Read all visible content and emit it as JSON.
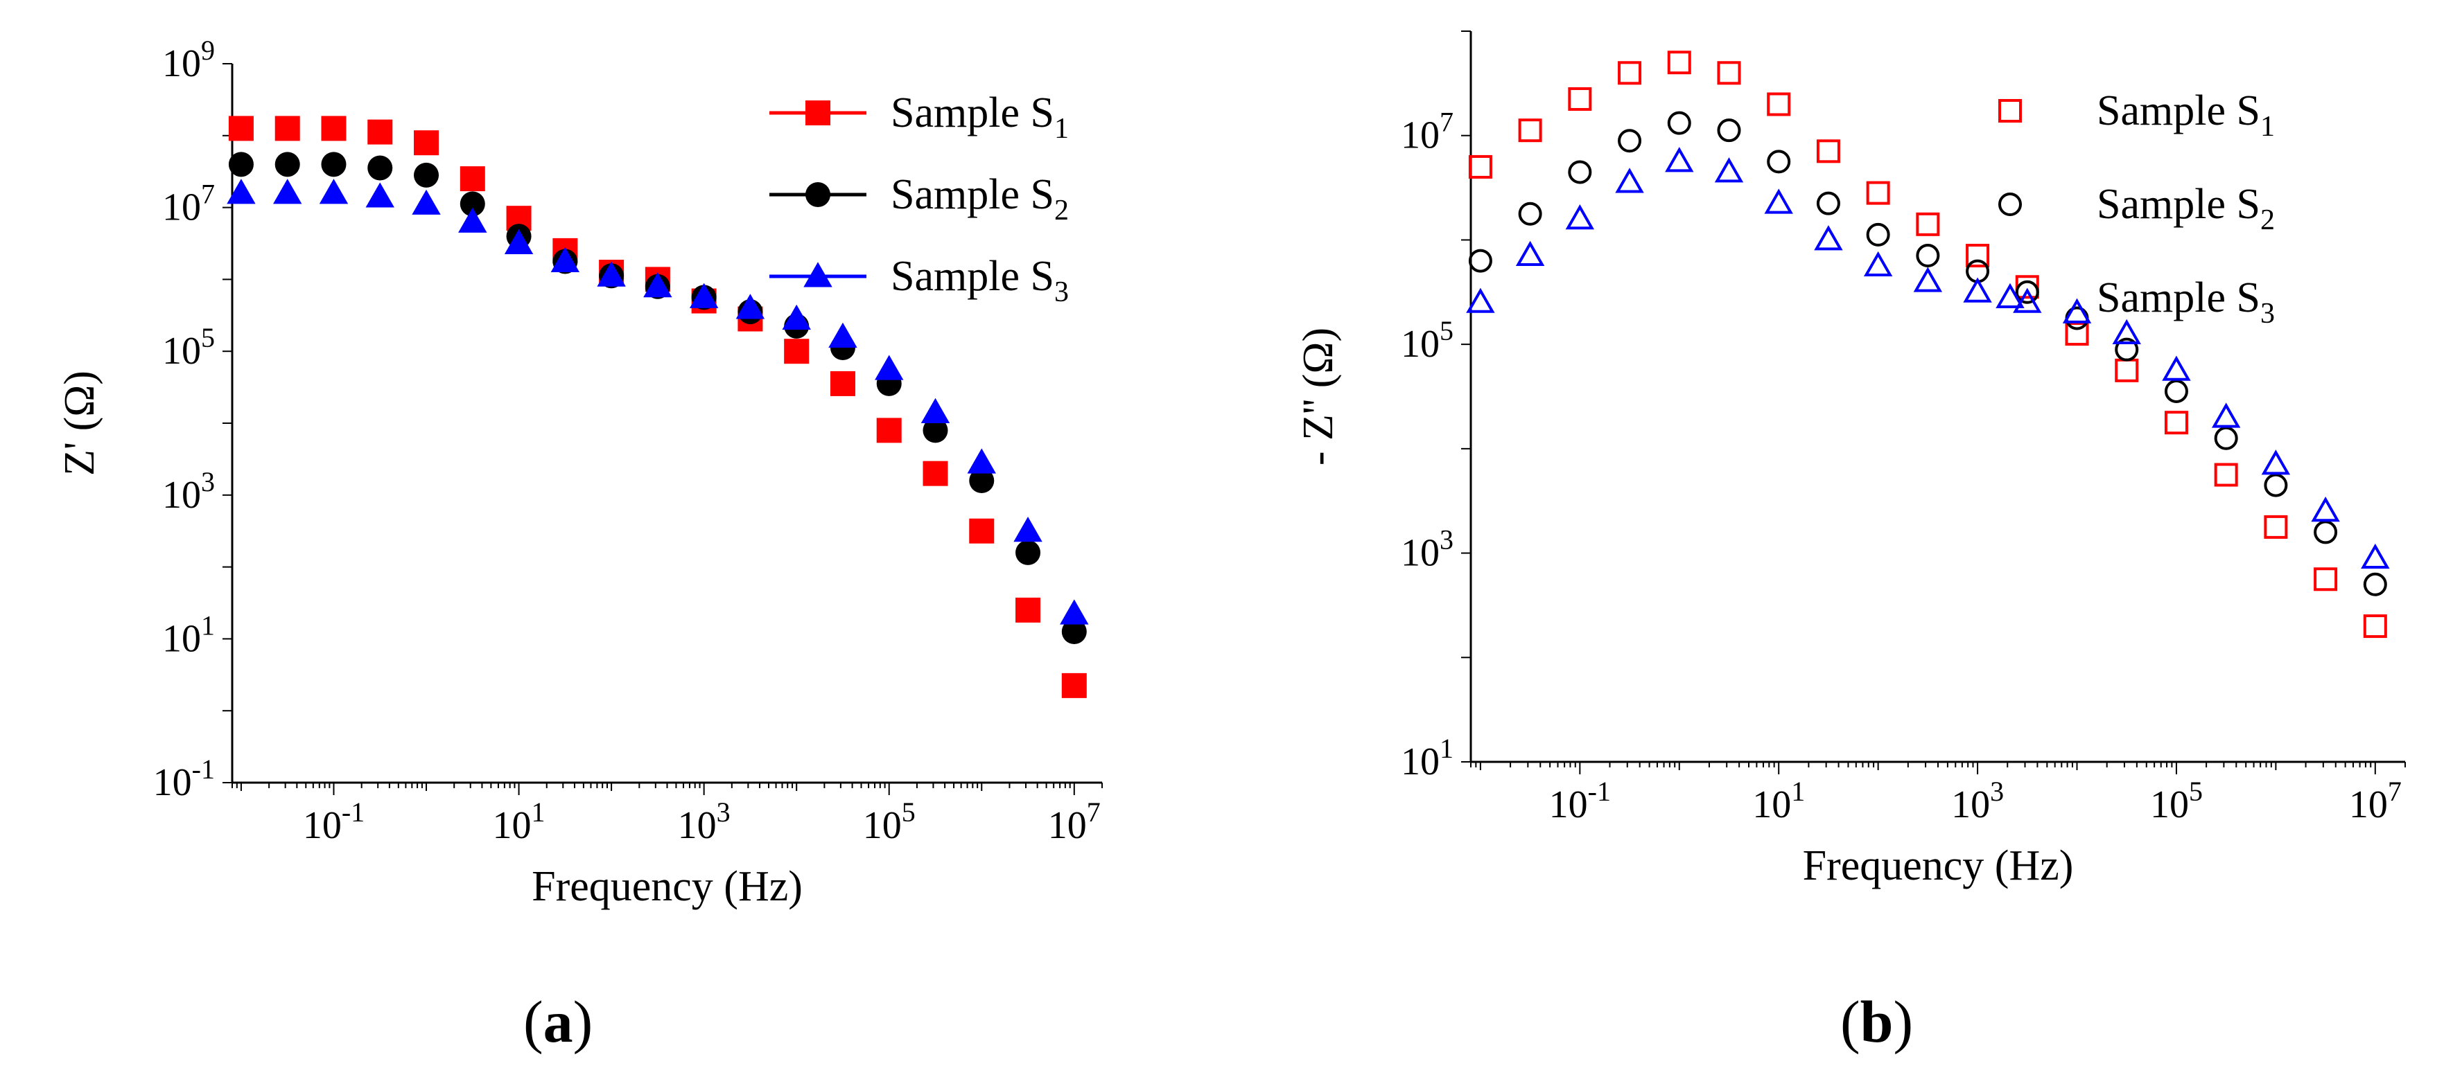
{
  "chart_data": [
    {
      "panel": "a",
      "type": "scatter",
      "xscale": "log",
      "yscale": "log",
      "xlabel": "Frequency (Hz)",
      "ylabel": "Z' (Ω)",
      "xlim": [
        0.008,
        20000000
      ],
      "ylim": [
        0.1,
        1000000000
      ],
      "xticks": [
        {
          "value": 0.1,
          "base": "10",
          "exp": "-1"
        },
        {
          "value": 10,
          "base": "10",
          "exp": "1"
        },
        {
          "value": 1000,
          "base": "10",
          "exp": "3"
        },
        {
          "value": 100000,
          "base": "10",
          "exp": "5"
        },
        {
          "value": 10000000,
          "base": "10",
          "exp": "7"
        }
      ],
      "yticks": [
        {
          "value": 0.1,
          "base": "10",
          "exp": "-1"
        },
        {
          "value": 10,
          "base": "10",
          "exp": "1"
        },
        {
          "value": 1000,
          "base": "10",
          "exp": "3"
        },
        {
          "value": 100000,
          "base": "10",
          "exp": "5"
        },
        {
          "value": 10000000,
          "base": "10",
          "exp": "7"
        },
        {
          "value": 1000000000,
          "base": "10",
          "exp": "9"
        }
      ],
      "legend": "top-right",
      "series": [
        {
          "name": "Sample S",
          "sub": "1",
          "color": "#ff0000",
          "marker": "square-filled",
          "logx": [
            -2.0,
            -1.5,
            -1.0,
            -0.5,
            0.0,
            0.5,
            1.0,
            1.5,
            2.0,
            2.5,
            3.0,
            3.5,
            4.0,
            4.5,
            5.0,
            5.5,
            6.0,
            6.5,
            7.0
          ],
          "logy": [
            8.1,
            8.1,
            8.1,
            8.05,
            7.9,
            7.4,
            6.85,
            6.4,
            6.1,
            6.0,
            5.7,
            5.45,
            5.0,
            4.55,
            3.9,
            3.3,
            2.5,
            1.4,
            0.35
          ]
        },
        {
          "name": "Sample S",
          "sub": "2",
          "color": "#000000",
          "marker": "circle-filled",
          "logx": [
            -2.0,
            -1.5,
            -1.0,
            -0.5,
            0.0,
            0.5,
            1.0,
            1.5,
            2.0,
            2.5,
            3.0,
            3.5,
            4.0,
            4.5,
            5.0,
            5.5,
            6.0,
            6.5,
            7.0
          ],
          "logy": [
            7.6,
            7.6,
            7.6,
            7.55,
            7.45,
            7.05,
            6.6,
            6.25,
            6.05,
            5.9,
            5.75,
            5.55,
            5.35,
            5.05,
            4.55,
            3.9,
            3.2,
            2.2,
            1.1
          ]
        },
        {
          "name": "Sample S",
          "sub": "3",
          "color": "#0000ff",
          "marker": "triangle-filled",
          "logx": [
            -2.0,
            -1.5,
            -1.0,
            -0.5,
            0.0,
            0.5,
            1.0,
            1.5,
            2.0,
            2.5,
            3.0,
            3.5,
            4.0,
            4.5,
            5.0,
            5.5,
            6.0,
            6.5,
            7.0
          ],
          "logy": [
            7.2,
            7.2,
            7.2,
            7.15,
            7.05,
            6.8,
            6.5,
            6.25,
            6.05,
            5.9,
            5.75,
            5.6,
            5.45,
            5.2,
            4.75,
            4.15,
            3.45,
            2.5,
            1.35
          ]
        }
      ]
    },
    {
      "panel": "b",
      "type": "scatter",
      "xscale": "log",
      "yscale": "log",
      "xlabel": "Frequency (Hz)",
      "ylabel": "- Z'' (Ω)",
      "xlim": [
        0.008,
        20000000
      ],
      "ylim": [
        10,
        100000000
      ],
      "xticks": [
        {
          "value": 0.1,
          "base": "10",
          "exp": "-1"
        },
        {
          "value": 10,
          "base": "10",
          "exp": "1"
        },
        {
          "value": 1000,
          "base": "10",
          "exp": "3"
        },
        {
          "value": 100000,
          "base": "10",
          "exp": "5"
        },
        {
          "value": 10000000,
          "base": "10",
          "exp": "7"
        }
      ],
      "yticks": [
        {
          "value": 10,
          "base": "10",
          "exp": "1"
        },
        {
          "value": 1000,
          "base": "10",
          "exp": "3"
        },
        {
          "value": 100000,
          "base": "10",
          "exp": "5"
        },
        {
          "value": 10000000,
          "base": "10",
          "exp": "7"
        }
      ],
      "legend": "top-right",
      "series": [
        {
          "name": "Sample S",
          "sub": "1",
          "color": "#ff0000",
          "marker": "square-open",
          "logx": [
            -2.0,
            -1.5,
            -1.0,
            -0.5,
            0.0,
            0.5,
            1.0,
            1.5,
            2.0,
            2.5,
            3.0,
            3.5,
            4.0,
            4.5,
            5.0,
            5.5,
            6.0,
            6.5,
            7.0
          ],
          "logy": [
            6.7,
            7.05,
            7.35,
            7.6,
            7.7,
            7.6,
            7.3,
            6.85,
            6.45,
            6.15,
            5.85,
            5.55,
            5.1,
            4.75,
            4.25,
            3.75,
            3.25,
            2.75,
            2.3
          ]
        },
        {
          "name": "Sample S",
          "sub": "2",
          "color": "#000000",
          "marker": "circle-open",
          "logx": [
            -2.0,
            -1.5,
            -1.0,
            -0.5,
            0.0,
            0.5,
            1.0,
            1.5,
            2.0,
            2.5,
            3.0,
            3.5,
            4.0,
            4.5,
            5.0,
            5.5,
            6.0,
            6.5,
            7.0
          ],
          "logy": [
            5.8,
            6.25,
            6.65,
            6.95,
            7.12,
            7.05,
            6.75,
            6.35,
            6.05,
            5.85,
            5.7,
            5.5,
            5.25,
            4.95,
            4.55,
            4.1,
            3.65,
            3.2,
            2.7
          ]
        },
        {
          "name": "Sample S",
          "sub": "3",
          "color": "#0000ff",
          "marker": "triangle-open",
          "logx": [
            -2.0,
            -1.5,
            -1.0,
            -0.5,
            0.0,
            0.5,
            1.0,
            1.5,
            2.0,
            2.5,
            3.0,
            3.5,
            4.0,
            4.5,
            5.0,
            5.5,
            6.0,
            6.5,
            7.0
          ],
          "logy": [
            5.4,
            5.85,
            6.2,
            6.55,
            6.75,
            6.65,
            6.35,
            6.0,
            5.75,
            5.6,
            5.5,
            5.4,
            5.3,
            5.1,
            4.75,
            4.3,
            3.85,
            3.4,
            2.95
          ]
        }
      ]
    }
  ],
  "panel_labels": {
    "a": "a",
    "b": "b"
  }
}
